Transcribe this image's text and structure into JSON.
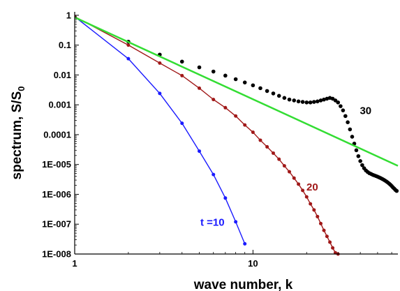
{
  "chart_data": {
    "type": "scatter",
    "xscale": "log",
    "yscale": "log",
    "xlim": [
      1,
      65
    ],
    "ylim": [
      1e-08,
      1.3
    ],
    "xlabel": "wave number, k",
    "ylabel": "spectrum, S/S",
    "ylabel_subscript": "0",
    "grid": false,
    "x_ticks": [
      {
        "value": 1,
        "label": "1"
      },
      {
        "value": 10,
        "label": "10"
      }
    ],
    "y_ticks": [
      {
        "value": 1,
        "label": "1"
      },
      {
        "value": 0.1,
        "label": "0.1"
      },
      {
        "value": 0.01,
        "label": "0.01"
      },
      {
        "value": 0.001,
        "label": "0.001"
      },
      {
        "value": 0.0001,
        "label": "0.0001"
      },
      {
        "value": 1e-05,
        "label": "1E-005"
      },
      {
        "value": 1e-06,
        "label": "1E-006"
      },
      {
        "value": 1e-07,
        "label": "1E-007"
      },
      {
        "value": 1e-08,
        "label": "1E-008"
      }
    ],
    "series": [
      {
        "name": "t =10",
        "color": "#1a1aff",
        "marker": "dot-with-line",
        "x": [
          1,
          2,
          3,
          4,
          5,
          6,
          7,
          8,
          9
        ],
        "y": [
          0.9,
          0.035,
          0.0024,
          0.00024,
          2.8e-05,
          4.6e-06,
          7.5e-07,
          1.2e-07,
          2.2e-08
        ]
      },
      {
        "name": "20",
        "color": "#a01818",
        "marker": "dot-with-line",
        "x": [
          1,
          2,
          3,
          4,
          5,
          6,
          7,
          8,
          9,
          10,
          11,
          12,
          13,
          14,
          15,
          16,
          17,
          18,
          19,
          20,
          21,
          22,
          23,
          24,
          25,
          26,
          27,
          28,
          29,
          30
        ],
        "y": [
          0.9,
          0.1,
          0.025,
          0.0095,
          0.0036,
          0.0015,
          0.0008,
          0.00042,
          0.00021,
          0.00012,
          6.5e-05,
          3.9e-05,
          2.4e-05,
          1.5e-05,
          9e-06,
          5.7e-06,
          3.5e-06,
          2.2e-06,
          1.35e-06,
          8.2e-07,
          4.8e-07,
          3e-07,
          1.8e-07,
          1.05e-07,
          6.2e-08,
          3.9e-08,
          2.5e-08,
          1.6e-08,
          1.1e-08,
          1e-08
        ]
      },
      {
        "name": "30",
        "color": "#000000",
        "marker": "dot",
        "x": [
          2,
          3,
          4,
          5,
          6,
          7,
          8,
          9,
          10,
          11,
          12,
          13,
          14,
          15,
          16,
          17,
          18,
          19,
          20,
          21,
          22,
          23,
          24,
          25,
          26,
          27,
          28,
          29,
          30,
          31,
          32,
          33,
          34,
          35,
          36,
          37,
          38,
          39,
          40,
          41,
          42,
          43,
          44,
          45,
          46,
          47,
          48,
          49,
          50,
          51,
          52,
          53,
          54,
          55,
          56,
          57,
          58,
          59,
          60,
          61,
          62,
          63,
          64
        ],
        "y": [
          0.13,
          0.048,
          0.028,
          0.018,
          0.013,
          0.0095,
          0.0072,
          0.0056,
          0.0045,
          0.0036,
          0.0029,
          0.0024,
          0.002,
          0.0017,
          0.0015,
          0.0014,
          0.0013,
          0.00125,
          0.0012,
          0.0012,
          0.00125,
          0.0013,
          0.0014,
          0.0015,
          0.0016,
          0.0017,
          0.0016,
          0.0014,
          0.0012,
          0.0009,
          0.00065,
          0.00042,
          0.00026,
          0.00015,
          8.5e-05,
          5e-05,
          3e-05,
          1.9e-05,
          1.3e-05,
          9.5e-06,
          7.5e-06,
          6.3e-06,
          5.6e-06,
          5.1e-06,
          4.8e-06,
          4.5e-06,
          4.3e-06,
          4.1e-06,
          3.9e-06,
          3.7e-06,
          3.5e-06,
          3.3e-06,
          3.1e-06,
          2.9e-06,
          2.7e-06,
          2.5e-06,
          2.3e-06,
          2.1e-06,
          1.9e-06,
          1.7e-06,
          1.55e-06,
          1.4e-06,
          1.3e-06
        ]
      },
      {
        "color": "#33dd33",
        "marker": "line",
        "x": [
          1,
          65
        ],
        "y": [
          0.85,
          9e-06
        ]
      }
    ],
    "annotations": [
      {
        "text": "t =10",
        "series": 0,
        "at": [
          8.7,
          2.2e-07
        ],
        "color": "#1a1aff"
      },
      {
        "text": "20",
        "series": 1,
        "at": [
          25,
          3e-06
        ],
        "color": "#a01818"
      },
      {
        "text": "30",
        "series": 2,
        "at": [
          55,
          0.0006
        ],
        "color": "#000000"
      }
    ]
  }
}
